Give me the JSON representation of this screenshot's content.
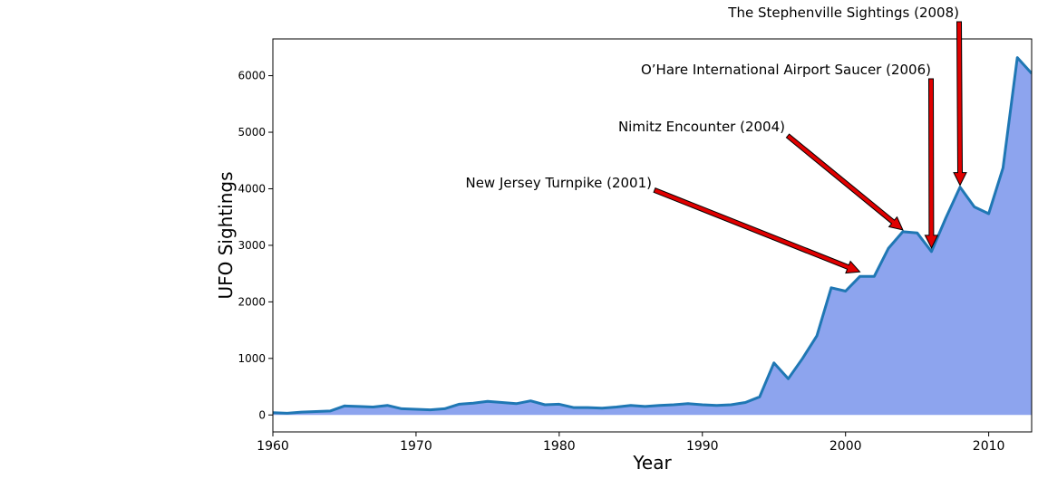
{
  "chart_data": {
    "type": "area",
    "title": "",
    "xlabel": "Year",
    "ylabel": "UFO Sightings",
    "xlim": [
      1960,
      2013
    ],
    "ylim": [
      -300,
      6650
    ],
    "x_ticks": [
      1960,
      1970,
      1980,
      1990,
      2000,
      2010
    ],
    "y_ticks": [
      0,
      1000,
      2000,
      3000,
      4000,
      5000,
      6000
    ],
    "grid": false,
    "colors": {
      "fill": "#8DA4EE",
      "line": "#1F77B4",
      "arrow": "#E00000"
    },
    "series": [
      {
        "x": [
          1960,
          1961,
          1962,
          1963,
          1964,
          1965,
          1966,
          1967,
          1968,
          1969,
          1970,
          1971,
          1972,
          1973,
          1974,
          1975,
          1976,
          1977,
          1978,
          1979,
          1980,
          1981,
          1982,
          1983,
          1984,
          1985,
          1986,
          1987,
          1988,
          1989,
          1990,
          1991,
          1992,
          1993,
          1994,
          1995,
          1996,
          1997,
          1998,
          1999,
          2000,
          2001,
          2002,
          2003,
          2004,
          2005,
          2006,
          2007,
          2008,
          2009,
          2010,
          2011,
          2012,
          2013
        ],
        "y": [
          40,
          30,
          50,
          60,
          70,
          160,
          150,
          140,
          170,
          110,
          100,
          90,
          110,
          190,
          210,
          240,
          220,
          200,
          250,
          180,
          190,
          130,
          130,
          120,
          140,
          170,
          150,
          170,
          180,
          200,
          180,
          170,
          180,
          220,
          320,
          920,
          640,
          1000,
          1400,
          2250,
          2190,
          2450,
          2450,
          2950,
          3240,
          3220,
          2890,
          3480,
          4030,
          3680,
          3560,
          4370,
          6320,
          6040
        ]
      }
    ],
    "annotations": [
      {
        "text": "New Jersey Turnpike (2001)",
        "x": 2001,
        "y": 2500
      },
      {
        "text": "Nimitz Encounter (2004)",
        "x": 2004,
        "y": 3240
      },
      {
        "text": "O’Hare International Airport Saucer (2006)",
        "x": 2006,
        "y": 2920
      },
      {
        "text": "The Stephenville Sightings (2008)",
        "x": 2008,
        "y": 4030
      }
    ]
  }
}
